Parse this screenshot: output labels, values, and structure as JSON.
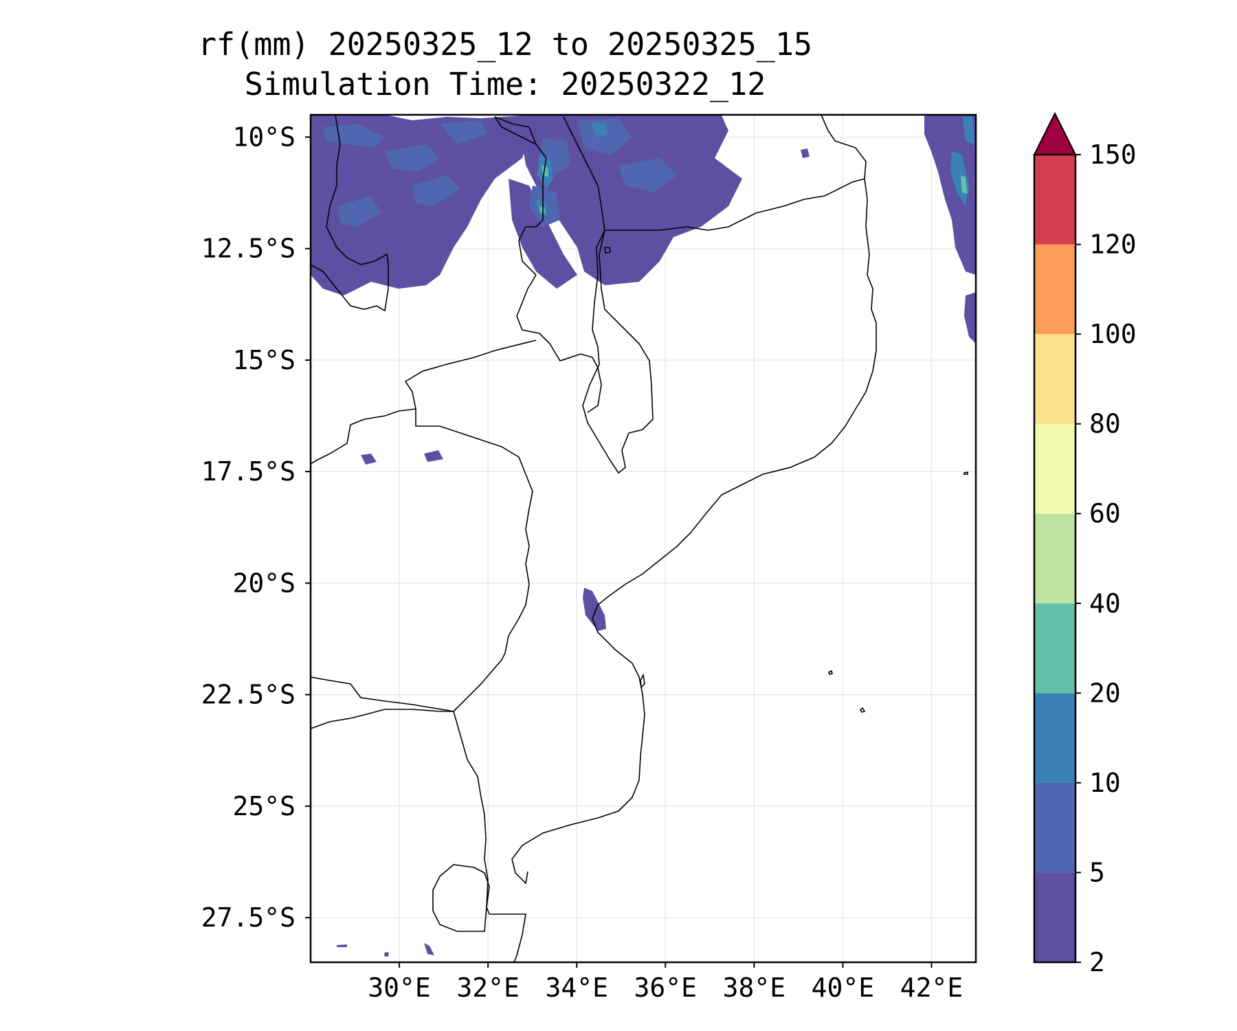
{
  "title": {
    "line1": "rf(mm) 20250325_12 to 20250325_15",
    "line2": "Simulation Time: 20250322_12"
  },
  "map": {
    "lon_range": [
      28,
      43
    ],
    "lat_range": [
      -28.5,
      -9.5
    ],
    "grid": true,
    "x_ticks": [
      "30°E",
      "32°E",
      "34°E",
      "36°E",
      "38°E",
      "40°E",
      "42°E"
    ],
    "x_tick_values": [
      30,
      32,
      34,
      36,
      38,
      40,
      42
    ],
    "y_ticks": [
      "10°S",
      "12.5°S",
      "15°S",
      "17.5°S",
      "20°S",
      "22.5°S",
      "25°S",
      "27.5°S"
    ],
    "y_tick_values": [
      -10,
      -12.5,
      -15,
      -17.5,
      -20,
      -22.5,
      -25,
      -27.5
    ]
  },
  "colorbar": {
    "levels": [
      "2",
      "5",
      "10",
      "20",
      "40",
      "60",
      "80",
      "100",
      "120",
      "150"
    ],
    "colors": [
      "#5e4fa2",
      "#4e67b0",
      "#3a80b9",
      "#64c0a9",
      "#bde3a0",
      "#f3f9ad",
      "#fde08b",
      "#f99d59",
      "#d53e4f"
    ],
    "extend_color": "#9e0142",
    "extend": "max"
  },
  "rain_colors": {
    "low": "#5e4fa2",
    "mid": "#4e67b0",
    "high": "#3a80b9",
    "peak": "#64c0a9"
  }
}
